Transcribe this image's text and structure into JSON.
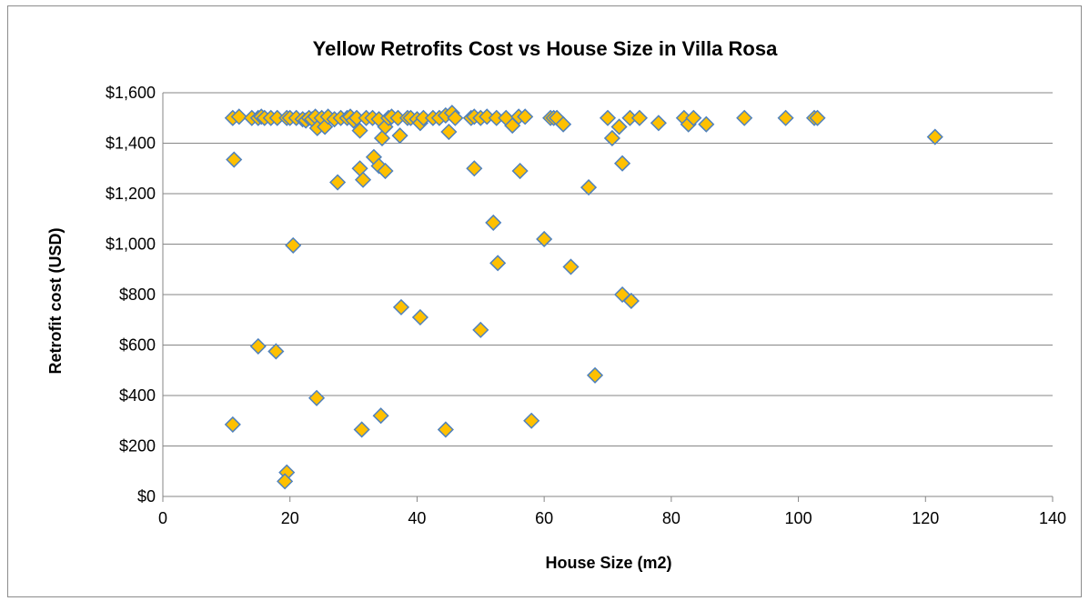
{
  "chart_data": {
    "type": "scatter",
    "title": "Yellow Retrofits Cost vs House Size in Villa Rosa",
    "xlabel": "House Size (m2)",
    "ylabel": "Retrofit cost (USD)",
    "xlim": [
      0,
      140
    ],
    "ylim": [
      0,
      1600
    ],
    "x_ticks": [
      0,
      20,
      40,
      60,
      80,
      100,
      120,
      140
    ],
    "x_tick_labels": [
      "0",
      "20",
      "40",
      "60",
      "80",
      "100",
      "120",
      "140"
    ],
    "y_ticks": [
      0,
      200,
      400,
      600,
      800,
      1000,
      1200,
      1400,
      1600
    ],
    "y_tick_labels": [
      "$0",
      "$200",
      "$400",
      "$600",
      "$800",
      "$1,000",
      "$1,200",
      "$1,400",
      "$1,600"
    ],
    "grid": "horizontal",
    "legend": "none",
    "marker": "diamond",
    "marker_fill": "#ffc000",
    "marker_edge": "#4f81bd",
    "points": [
      [
        11,
        1500
      ],
      [
        12,
        1505
      ],
      [
        14,
        1500
      ],
      [
        15,
        1500
      ],
      [
        15.5,
        1505
      ],
      [
        16,
        1500
      ],
      [
        17,
        1500
      ],
      [
        18,
        1500
      ],
      [
        19.5,
        1500
      ],
      [
        20,
        1500
      ],
      [
        21,
        1500
      ],
      [
        22,
        1495
      ],
      [
        22.5,
        1490
      ],
      [
        23,
        1500
      ],
      [
        23.5,
        1495
      ],
      [
        24,
        1505
      ],
      [
        24.3,
        1460
      ],
      [
        25,
        1500
      ],
      [
        25.5,
        1465
      ],
      [
        26,
        1505
      ],
      [
        27,
        1495
      ],
      [
        28,
        1500
      ],
      [
        29,
        1500
      ],
      [
        29.5,
        1505
      ],
      [
        30,
        1490
      ],
      [
        30.5,
        1500
      ],
      [
        31,
        1450
      ],
      [
        32,
        1500
      ],
      [
        33,
        1500
      ],
      [
        34,
        1495
      ],
      [
        34.5,
        1420
      ],
      [
        35,
        1465
      ],
      [
        35.5,
        1500
      ],
      [
        36,
        1505
      ],
      [
        37,
        1500
      ],
      [
        37.3,
        1430
      ],
      [
        38.5,
        1500
      ],
      [
        39,
        1500
      ],
      [
        40,
        1495
      ],
      [
        40.5,
        1480
      ],
      [
        41,
        1500
      ],
      [
        42.5,
        1500
      ],
      [
        43.5,
        1500
      ],
      [
        44.5,
        1510
      ],
      [
        45,
        1445
      ],
      [
        45.5,
        1520
      ],
      [
        46,
        1500
      ],
      [
        48.5,
        1500
      ],
      [
        49,
        1505
      ],
      [
        50,
        1500
      ],
      [
        51,
        1505
      ],
      [
        52.5,
        1500
      ],
      [
        54,
        1500
      ],
      [
        55,
        1470
      ],
      [
        56,
        1505
      ],
      [
        57,
        1505
      ],
      [
        61,
        1500
      ],
      [
        61.5,
        1500
      ],
      [
        62,
        1500
      ],
      [
        63,
        1475
      ],
      [
        70,
        1500
      ],
      [
        70.7,
        1420
      ],
      [
        71.8,
        1465
      ],
      [
        73.5,
        1500
      ],
      [
        75,
        1500
      ],
      [
        78,
        1480
      ],
      [
        82,
        1500
      ],
      [
        82.7,
        1475
      ],
      [
        83.5,
        1500
      ],
      [
        85.5,
        1475
      ],
      [
        91.5,
        1500
      ],
      [
        98,
        1500
      ],
      [
        102.5,
        1500
      ],
      [
        103,
        1500
      ],
      [
        121.5,
        1425
      ],
      [
        11.2,
        1335
      ],
      [
        31,
        1300
      ],
      [
        31.5,
        1255
      ],
      [
        27.5,
        1245
      ],
      [
        33.2,
        1345
      ],
      [
        34,
        1310
      ],
      [
        35,
        1290
      ],
      [
        49,
        1300
      ],
      [
        56.2,
        1290
      ],
      [
        67,
        1225
      ],
      [
        72.3,
        1320
      ],
      [
        52,
        1085
      ],
      [
        20.5,
        995
      ],
      [
        60,
        1020
      ],
      [
        52.7,
        925
      ],
      [
        64.2,
        910
      ],
      [
        72.3,
        800
      ],
      [
        73.7,
        775
      ],
      [
        37.5,
        750
      ],
      [
        40.5,
        710
      ],
      [
        50,
        660
      ],
      [
        15,
        595
      ],
      [
        17.8,
        575
      ],
      [
        68,
        480
      ],
      [
        24.2,
        390
      ],
      [
        34.3,
        320
      ],
      [
        58,
        300
      ],
      [
        11,
        285
      ],
      [
        31.3,
        265
      ],
      [
        44.5,
        265
      ],
      [
        19.5,
        95
      ],
      [
        19.2,
        60
      ]
    ]
  }
}
